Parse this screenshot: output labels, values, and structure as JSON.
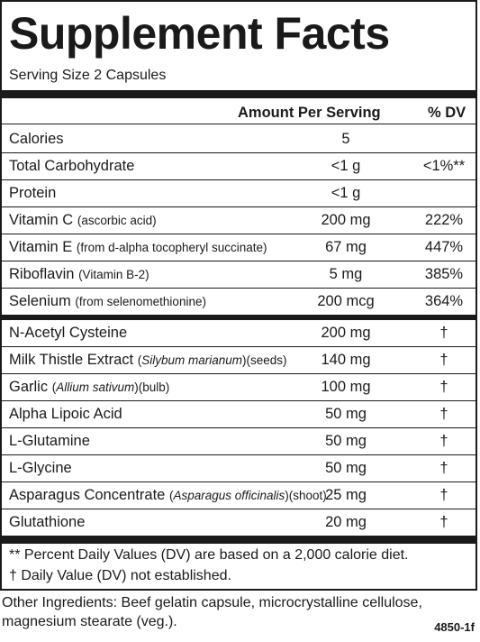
{
  "title": "Supplement Facts",
  "serving_size": "Serving Size 2 Capsules",
  "header": {
    "amount": "Amount Per Serving",
    "dv": "% DV"
  },
  "nutrients": [
    {
      "name": "Calories",
      "sub": "",
      "amount": "5",
      "dv": ""
    },
    {
      "name": "Total Carbohydrate",
      "sub": "",
      "amount": "<1 g",
      "dv": "<1%**"
    },
    {
      "name": "Protein",
      "sub": "",
      "amount": "<1 g",
      "dv": ""
    },
    {
      "name": "Vitamin C",
      "sub": "(ascorbic acid)",
      "amount": "200 mg",
      "dv": "222%"
    },
    {
      "name": "Vitamin E",
      "sub": "(from d-alpha tocopheryl succinate)",
      "amount": "67 mg",
      "dv": "447%"
    },
    {
      "name": "Riboflavin",
      "sub": "(Vitamin B-2)",
      "amount": "5 mg",
      "dv": "385%"
    },
    {
      "name": "Selenium",
      "sub": "(from selenomethionine)",
      "amount": "200 mcg",
      "dv": "364%"
    }
  ],
  "ingredients": [
    {
      "name": "N-Acetyl Cysteine",
      "sub_pre": "",
      "sub_italic": "",
      "sub_post": "",
      "amount": "200 mg",
      "dv": "†"
    },
    {
      "name": "Milk Thistle Extract",
      "sub_pre": "(",
      "sub_italic": "Silybum marianum",
      "sub_post": ")(seeds)",
      "amount": "140 mg",
      "dv": "†"
    },
    {
      "name": "Garlic",
      "sub_pre": "(",
      "sub_italic": "Allium sativum",
      "sub_post": ")(bulb)",
      "amount": "100 mg",
      "dv": "†"
    },
    {
      "name": "Alpha Lipoic Acid",
      "sub_pre": "",
      "sub_italic": "",
      "sub_post": "",
      "amount": "50 mg",
      "dv": "†"
    },
    {
      "name": "L-Glutamine",
      "sub_pre": "",
      "sub_italic": "",
      "sub_post": "",
      "amount": "50 mg",
      "dv": "†"
    },
    {
      "name": "L-Glycine",
      "sub_pre": "",
      "sub_italic": "",
      "sub_post": "",
      "amount": "50 mg",
      "dv": "†"
    },
    {
      "name": "Asparagus Concentrate",
      "sub_pre": "(",
      "sub_italic": "Asparagus officinalis",
      "sub_post": ")(shoot)",
      "amount": "25 mg",
      "dv": "†"
    },
    {
      "name": "Glutathione",
      "sub_pre": "",
      "sub_italic": "",
      "sub_post": "",
      "amount": "20 mg",
      "dv": "†"
    }
  ],
  "footnotes": {
    "dv_note": "** Percent Daily Values (DV) are based on a 2,000 calorie diet.",
    "dagger_note": "† Daily Value (DV) not established."
  },
  "other_ingredients": "Other Ingredients: Beef gelatin capsule, microcrystalline cellulose, magnesium stearate (veg.).",
  "code": "4850-1f"
}
